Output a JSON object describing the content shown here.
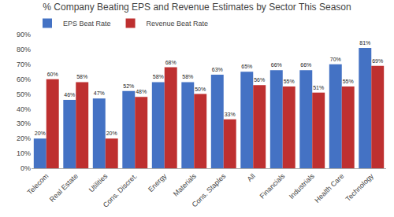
{
  "chart_data": {
    "type": "bar",
    "title": "% Company Beating EPS and Revenue Estimates by Sector This Season",
    "categories": [
      "Telecom",
      "Real Estate",
      "Utilities",
      "Cons. Discret.",
      "Energy",
      "Materials",
      "Cons. Staples",
      "All",
      "Financials",
      "Industrials",
      "Health Care",
      "Technology"
    ],
    "series": [
      {
        "name": "EPS Beat Rate",
        "color": "#4472C4",
        "values": [
          20,
          46,
          47,
          52,
          58,
          58,
          63,
          65,
          66,
          66,
          70,
          81
        ],
        "value_labels": [
          "20%",
          "46%",
          "47%",
          "52%",
          "58%",
          "58%",
          "63%",
          "65%",
          "66%",
          "66%",
          "70%",
          "81%"
        ]
      },
      {
        "name": "Revenue Beat Rate",
        "color": "#BE3030",
        "values": [
          60,
          58,
          20,
          48,
          68,
          50,
          33,
          56,
          55,
          51,
          55,
          69
        ],
        "value_labels": [
          "60%",
          "58%",
          "20%",
          "48%",
          "68%",
          "50%",
          "33%",
          "56%",
          "55%",
          "51%",
          "55%",
          "69%"
        ]
      }
    ],
    "ylim": [
      0,
      90
    ],
    "yticks": [
      {
        "value": 0,
        "label": "0%"
      },
      {
        "value": 10,
        "label": "10%"
      },
      {
        "value": 20,
        "label": "20%"
      },
      {
        "value": 30,
        "label": "30%"
      },
      {
        "value": 40,
        "label": "40%"
      },
      {
        "value": 50,
        "label": "50%"
      },
      {
        "value": 60,
        "label": "60%"
      },
      {
        "value": 70,
        "label": "70%"
      },
      {
        "value": 80,
        "label": "80%"
      },
      {
        "value": 90,
        "label": "90%"
      }
    ],
    "grid": false,
    "legend": "upper left",
    "data_labels": true
  }
}
